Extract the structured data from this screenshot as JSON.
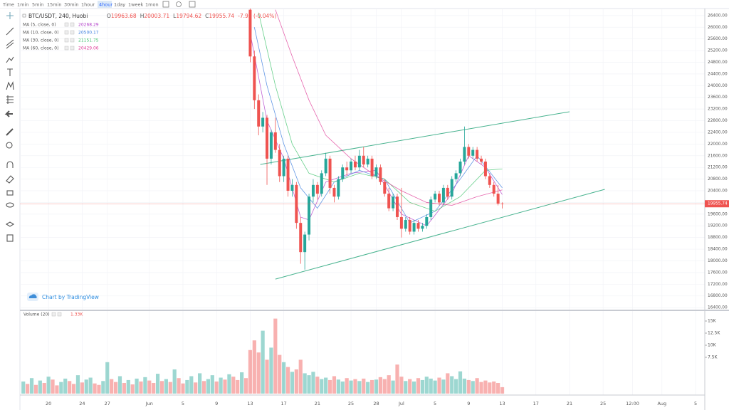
{
  "toolbar": {
    "items": [
      "Time",
      "1min",
      "5min",
      "15min",
      "30min",
      "1hour",
      "4hour",
      "1day",
      "1week",
      "1mon"
    ],
    "active": 6
  },
  "chart_data": {
    "type": "candlestick",
    "symbol": "BTC/USDT, 240, Huobi",
    "ohlc_labels": [
      "O",
      "H",
      "L",
      "C"
    ],
    "change": "-7.93 (-0.04%)",
    "watermark": "Chart by TradingView",
    "up_color": "#26a69a",
    "down_color": "#ef5350",
    "candles": {
      "x_start": 43,
      "x_step": 0.5,
      "open": [
        26600,
        25000,
        23500,
        22600,
        22900,
        21500,
        22400,
        21800,
        20900,
        21500,
        20400,
        20600,
        19300,
        18300,
        18900,
        20200,
        20600,
        20300,
        21000,
        21500,
        20500,
        20200,
        20800,
        21200,
        21100,
        21400,
        21200,
        21600,
        21300,
        21500,
        20900,
        21200,
        20700,
        20300,
        19800,
        20200,
        19500,
        19100,
        19400,
        19000,
        19300,
        19100,
        19200,
        19500,
        20100,
        20300,
        20000,
        20500,
        20200,
        20800,
        21000,
        21400,
        21900,
        21600,
        21800,
        21500,
        21400,
        20900,
        20600,
        20300,
        19963.68
      ],
      "high": [
        26700,
        25200,
        23700,
        23100,
        23000,
        22500,
        22900,
        22000,
        21600,
        21600,
        20800,
        20700,
        19500,
        19000,
        20300,
        20800,
        20700,
        21100,
        21700,
        21600,
        20600,
        20900,
        21300,
        21400,
        21500,
        21600,
        21800,
        21900,
        21600,
        21600,
        21300,
        21300,
        20800,
        20500,
        20300,
        20300,
        20500,
        19500,
        19500,
        19400,
        19400,
        19300,
        19600,
        20200,
        20400,
        20400,
        20600,
        20600,
        20900,
        21100,
        21500,
        22600,
        22000,
        21900,
        21900,
        21600,
        21500,
        21000,
        20700,
        20600,
        20003.71
      ],
      "low": [
        24800,
        23200,
        22300,
        22400,
        20600,
        21300,
        21700,
        20700,
        20700,
        20200,
        20200,
        19100,
        17900,
        17700,
        18700,
        20000,
        20100,
        20200,
        20900,
        20300,
        20000,
        20100,
        20700,
        20900,
        21000,
        21100,
        21100,
        21200,
        21200,
        20800,
        20800,
        20600,
        20200,
        19700,
        19700,
        19400,
        18800,
        19000,
        18900,
        18900,
        19000,
        19000,
        19100,
        19400,
        20000,
        19900,
        19900,
        20100,
        20100,
        20700,
        20900,
        21300,
        21500,
        21500,
        21400,
        21300,
        20800,
        20500,
        20200,
        19900,
        19794.62
      ],
      "close": [
        25000,
        23500,
        22600,
        22900,
        21500,
        22400,
        21800,
        20900,
        21500,
        20400,
        20600,
        19300,
        18300,
        18900,
        20200,
        20600,
        20300,
        21000,
        21500,
        20500,
        20200,
        20800,
        21200,
        21100,
        21400,
        21200,
        21600,
        21300,
        21500,
        20900,
        21200,
        20700,
        20300,
        19800,
        20200,
        19500,
        19100,
        19400,
        19000,
        19300,
        19100,
        19200,
        19500,
        20100,
        20300,
        20000,
        20500,
        20200,
        20800,
        21000,
        21400,
        21900,
        21600,
        21800,
        21500,
        21400,
        20900,
        20600,
        20300,
        19963.67,
        19955.74
      ]
    },
    "moving_averages": [
      {
        "name": "MA (5, close, 0)",
        "value": 20268.29,
        "color": "#b23fc9",
        "x": [
          43,
          45,
          47,
          49,
          50,
          52,
          55,
          58,
          61,
          64,
          67,
          69,
          71,
          73
        ],
        "values": [
          25800,
          22800,
          21500,
          19500,
          19400,
          20700,
          21000,
          21100,
          19600,
          19200,
          20300,
          21600,
          21200,
          20270
        ]
      },
      {
        "name": "MA (10, close, 0)",
        "value": 20500.17,
        "color": "#3b7dde",
        "x": [
          43.5,
          45,
          47,
          49,
          51,
          53,
          56,
          59,
          62,
          65,
          68,
          70,
          73
        ],
        "values": [
          26000,
          24000,
          22000,
          20500,
          19800,
          20700,
          21100,
          20800,
          19300,
          19700,
          20800,
          21600,
          20500
        ]
      },
      {
        "name": "MA (30, close, 0)",
        "value": 21151.75,
        "color": "#41c46e",
        "x": [
          44,
          46,
          48,
          50,
          53,
          56,
          59,
          62,
          65,
          68,
          71,
          73
        ],
        "values": [
          26500,
          24000,
          22000,
          21000,
          20700,
          21000,
          20800,
          20000,
          19700,
          20200,
          21100,
          21150
        ]
      },
      {
        "name": "MA (60, close, 0)",
        "value": 20429.06,
        "color": "#e0409a",
        "x": [
          46,
          48,
          50,
          52,
          55,
          58,
          61,
          64,
          67,
          70,
          73
        ],
        "values": [
          26600,
          25000,
          23500,
          22300,
          21500,
          20900,
          20400,
          20000,
          19900,
          20200,
          20430
        ]
      }
    ],
    "drawings": [
      {
        "color": "#48b38f",
        "x": [
          44.2,
          81.0
        ],
        "y": [
          21302,
          23107
        ]
      },
      {
        "color": "#48b38f",
        "x": [
          46.0,
          85.2
        ],
        "y": [
          17376,
          20449
        ]
      }
    ],
    "ylim": [
      16330,
      26640
    ],
    "yticks": [
      {
        "value": 26400,
        "label": "26400.00"
      },
      {
        "value": 26000,
        "label": "26000.00"
      },
      {
        "value": 25600,
        "label": "25600.00"
      },
      {
        "value": 25200,
        "label": "25200.00"
      },
      {
        "value": 24800,
        "label": "24800.00"
      },
      {
        "value": 24400,
        "label": "24400.00"
      },
      {
        "value": 24000,
        "label": "24000.00"
      },
      {
        "value": 23600,
        "label": "23600.00"
      },
      {
        "value": 23200,
        "label": "23200.00"
      },
      {
        "value": 22800,
        "label": "22800.00"
      },
      {
        "value": 22400,
        "label": "22400.00"
      },
      {
        "value": 22000,
        "label": "22000.00"
      },
      {
        "value": 21600,
        "label": "21600.00"
      },
      {
        "value": 21200,
        "label": "21200.00"
      },
      {
        "value": 20800,
        "label": "20800.00"
      },
      {
        "value": 20400,
        "label": "20400.00"
      },
      {
        "value": 20000,
        "label": "20000.00"
      },
      {
        "value": 19600,
        "label": "19600.00"
      },
      {
        "value": 19200,
        "label": "19200.00"
      },
      {
        "value": 18800,
        "label": "18800.00"
      },
      {
        "value": 18400,
        "label": "18400.00"
      },
      {
        "value": 18000,
        "label": "18000.00"
      },
      {
        "value": 17600,
        "label": "17600.00"
      },
      {
        "value": 17200,
        "label": "17200.00"
      },
      {
        "value": 16800,
        "label": "16800.00"
      },
      {
        "value": 16400,
        "label": "16400.00"
      }
    ],
    "xlim": [
      15.6,
      97.1
    ],
    "xticks": [
      {
        "value": 19,
        "label": "20"
      },
      {
        "value": 23,
        "label": "24"
      },
      {
        "value": 26,
        "label": "27"
      },
      {
        "value": 31,
        "label": "Jun"
      },
      {
        "value": 35,
        "label": "5"
      },
      {
        "value": 39,
        "label": "9"
      },
      {
        "value": 43,
        "label": "13"
      },
      {
        "value": 47,
        "label": "17"
      },
      {
        "value": 51,
        "label": "21"
      },
      {
        "value": 55,
        "label": "25"
      },
      {
        "value": 58,
        "label": "28"
      },
      {
        "value": 61,
        "label": "Jul"
      },
      {
        "value": 65,
        "label": "5"
      },
      {
        "value": 69,
        "label": "9"
      },
      {
        "value": 73,
        "label": "13"
      },
      {
        "value": 77,
        "label": "17"
      },
      {
        "value": 81,
        "label": "21"
      },
      {
        "value": 85,
        "label": "25"
      },
      {
        "value": 88.5,
        "label": "12:00"
      },
      {
        "value": 92,
        "label": "Aug"
      },
      {
        "value": 96,
        "label": "5"
      }
    ],
    "volume": {
      "name": "Volume (20)",
      "last_value_label": "1.33K",
      "x_start": 16,
      "x_step": 0.5,
      "values": [
        2500,
        2000,
        3200,
        1800,
        2700,
        2200,
        3500,
        2900,
        1700,
        2400,
        3100,
        2600,
        2000,
        3800,
        2300,
        2900,
        3300,
        2100,
        1800,
        2600,
        6500,
        3000,
        2400,
        3600,
        2200,
        2800,
        1900,
        3100,
        2500,
        3400,
        2700,
        2200,
        4100,
        2600,
        3000,
        2400,
        5000,
        3200,
        2100,
        2800,
        3600,
        2300,
        4200,
        2600,
        3000,
        3800,
        2500,
        3300,
        2900,
        4000,
        3500,
        2800,
        4400,
        3200,
        9000,
        11000,
        8500,
        13000,
        7000,
        9500,
        15500,
        8000,
        6500,
        5500,
        4500,
        5000,
        7000,
        4200,
        3800,
        4500,
        3500,
        3000,
        3300,
        2800,
        3600,
        2900,
        2500,
        3200,
        2700,
        3000,
        2600,
        3100,
        2400,
        2800,
        2900,
        3400,
        3000,
        3800,
        2700,
        6000,
        3500,
        2600,
        3000,
        2500,
        3200,
        2800,
        3500,
        3100,
        2700,
        3300,
        2900,
        4200,
        3600,
        3000,
        4600,
        3100,
        2800,
        2600,
        3200,
        2400,
        2700,
        2300,
        2500,
        2200,
        1330
      ],
      "ylim": [
        -300,
        17060
      ],
      "yticks": [
        {
          "value": 15000,
          "label": "15K"
        },
        {
          "value": 12500,
          "label": "12.5K"
        },
        {
          "value": 10000,
          "label": "10K"
        },
        {
          "value": 7500,
          "label": "7.5K"
        }
      ]
    }
  }
}
